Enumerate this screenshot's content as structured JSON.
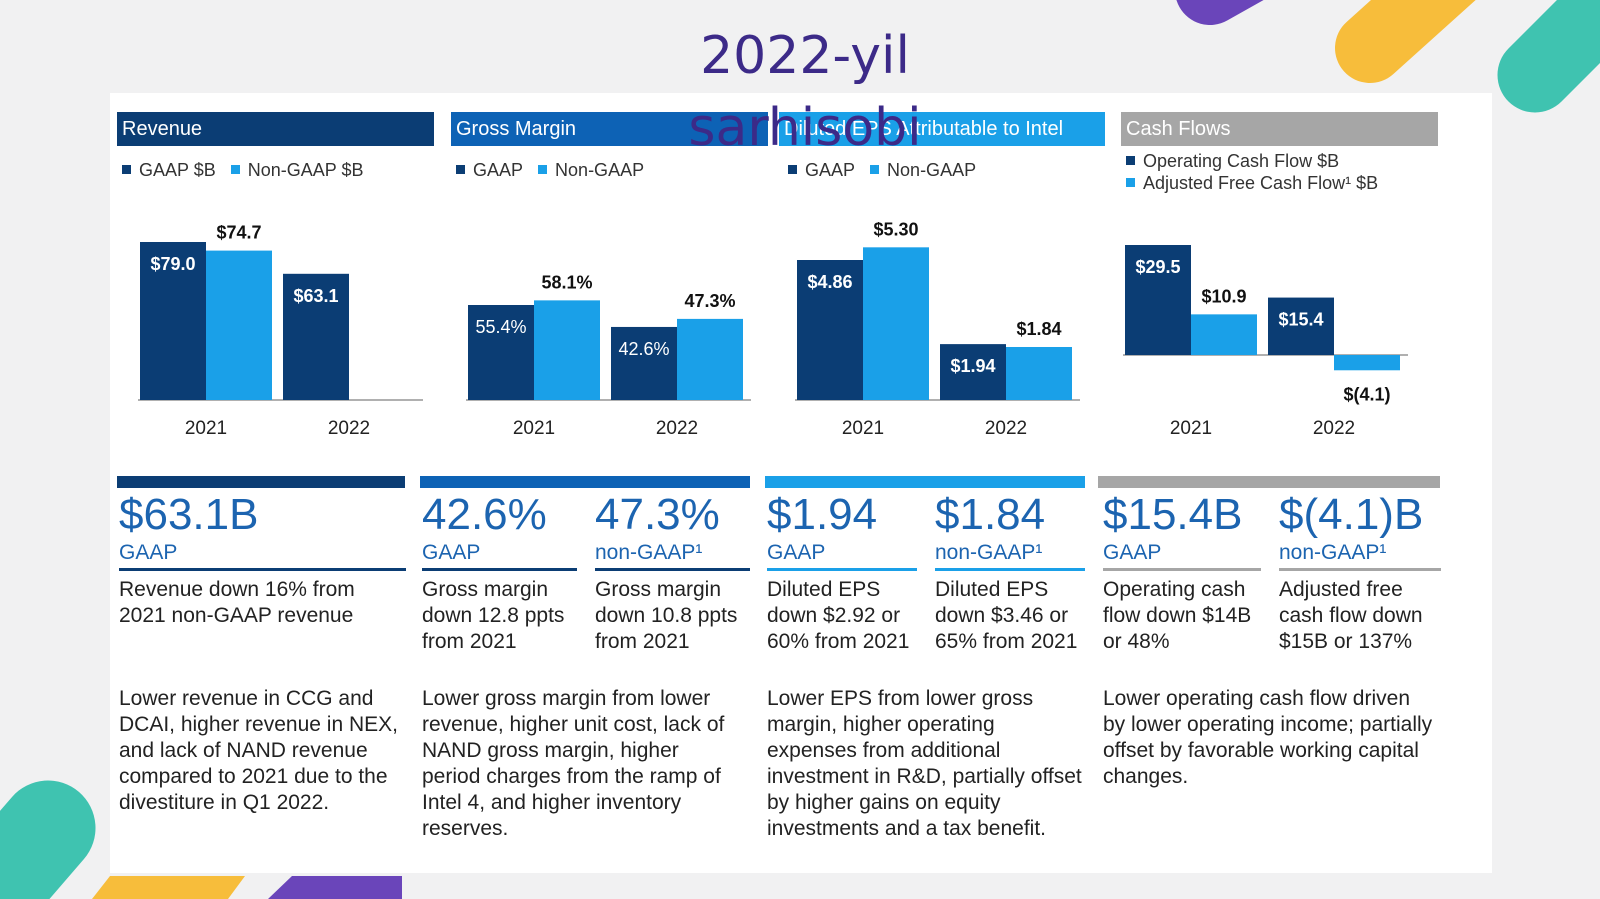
{
  "title_lines": [
    "2022-yil",
    "sarhisobi"
  ],
  "colors": {
    "gaap": "#0b3d74",
    "non_gaap": "#1aa0e8",
    "cash_header": "#a6a6a6",
    "title": "#3c2a88",
    "metric": "#1c64b0"
  },
  "panels": [
    {
      "header": "Revenue",
      "legend": [
        "GAAP $B",
        "Non-GAAP $B"
      ]
    },
    {
      "header": "Gross Margin",
      "legend": [
        "GAAP",
        "Non-GAAP"
      ]
    },
    {
      "header": "Diluted EPS Attributable to Intel",
      "legend": [
        "GAAP",
        "Non-GAAP"
      ]
    },
    {
      "header": "Cash Flows",
      "legend": [
        "Operating Cash Flow $B",
        "Adjusted Free Cash Flow¹ $B"
      ]
    }
  ],
  "chart_data": [
    {
      "type": "bar",
      "title": "Revenue",
      "categories": [
        "2021",
        "2022"
      ],
      "series": [
        {
          "name": "GAAP $B",
          "values": [
            79.0,
            63.1
          ],
          "labels": [
            "$79.0",
            "$63.1"
          ]
        },
        {
          "name": "Non-GAAP $B",
          "values": [
            74.7,
            null
          ],
          "labels": [
            "$74.7",
            ""
          ]
        }
      ],
      "ylim": [
        0,
        85
      ]
    },
    {
      "type": "bar",
      "title": "Gross Margin",
      "categories": [
        "2021",
        "2022"
      ],
      "series": [
        {
          "name": "GAAP",
          "values": [
            55.4,
            42.6
          ],
          "labels": [
            "55.4%",
            "42.6%"
          ]
        },
        {
          "name": "Non-GAAP",
          "values": [
            58.1,
            47.3
          ],
          "labels": [
            "58.1%",
            "47.3%"
          ]
        }
      ],
      "ylim": [
        0,
        100
      ]
    },
    {
      "type": "bar",
      "title": "Diluted EPS Attributable to Intel",
      "categories": [
        "2021",
        "2022"
      ],
      "series": [
        {
          "name": "GAAP",
          "values": [
            4.86,
            1.94
          ],
          "labels": [
            "$4.86",
            "$1.94"
          ]
        },
        {
          "name": "Non-GAAP",
          "values": [
            5.3,
            1.84
          ],
          "labels": [
            "$5.30",
            "$1.84"
          ]
        }
      ],
      "ylim": [
        0,
        6
      ]
    },
    {
      "type": "bar",
      "title": "Cash Flows",
      "categories": [
        "2021",
        "2022"
      ],
      "series": [
        {
          "name": "Operating Cash Flow $B",
          "values": [
            29.5,
            15.4
          ],
          "labels": [
            "$29.5",
            "$15.4"
          ]
        },
        {
          "name": "Adjusted Free Cash Flow¹ $B",
          "values": [
            10.9,
            -4.1
          ],
          "labels": [
            "$10.9",
            "$(4.1)"
          ]
        }
      ],
      "ylim": [
        -5,
        40
      ]
    }
  ],
  "metrics": [
    {
      "value": "$63.1B",
      "label": "GAAP",
      "desc": "Revenue down 16% from 2021 non-GAAP revenue"
    },
    {
      "value": "42.6%",
      "label": "GAAP",
      "desc": "Gross margin down 12.8 ppts from 2021"
    },
    {
      "value": "47.3%",
      "label": "non-GAAP¹",
      "desc": "Gross margin down 10.8 ppts from 2021"
    },
    {
      "value": "$1.94",
      "label": "GAAP",
      "desc": "Diluted EPS down $2.92 or 60% from 2021"
    },
    {
      "value": "$1.84",
      "label": "non-GAAP¹",
      "desc": "Diluted EPS down $3.46 or 65% from 2021"
    },
    {
      "value": "$15.4B",
      "label": "GAAP",
      "desc": "Operating cash flow down $14B or 48%"
    },
    {
      "value": "$(4.1)B",
      "label": "non-GAAP¹",
      "desc": "Adjusted free cash flow down $15B or 137%"
    }
  ],
  "notes": [
    "Lower revenue in CCG and DCAI, higher revenue in NEX, and lack of NAND revenue compared to 2021 due to the divestiture in Q1 2022.",
    "Lower gross margin from lower revenue, higher unit cost, lack of NAND gross margin, higher period charges from the ramp of Intel 4, and higher inventory reserves.",
    "Lower EPS from lower gross margin, higher operating expenses from additional investment in R&D, partially offset by higher gains on equity investments and a tax benefit.",
    "Lower operating cash flow driven by lower operating income; partially offset by favorable working capital changes."
  ]
}
